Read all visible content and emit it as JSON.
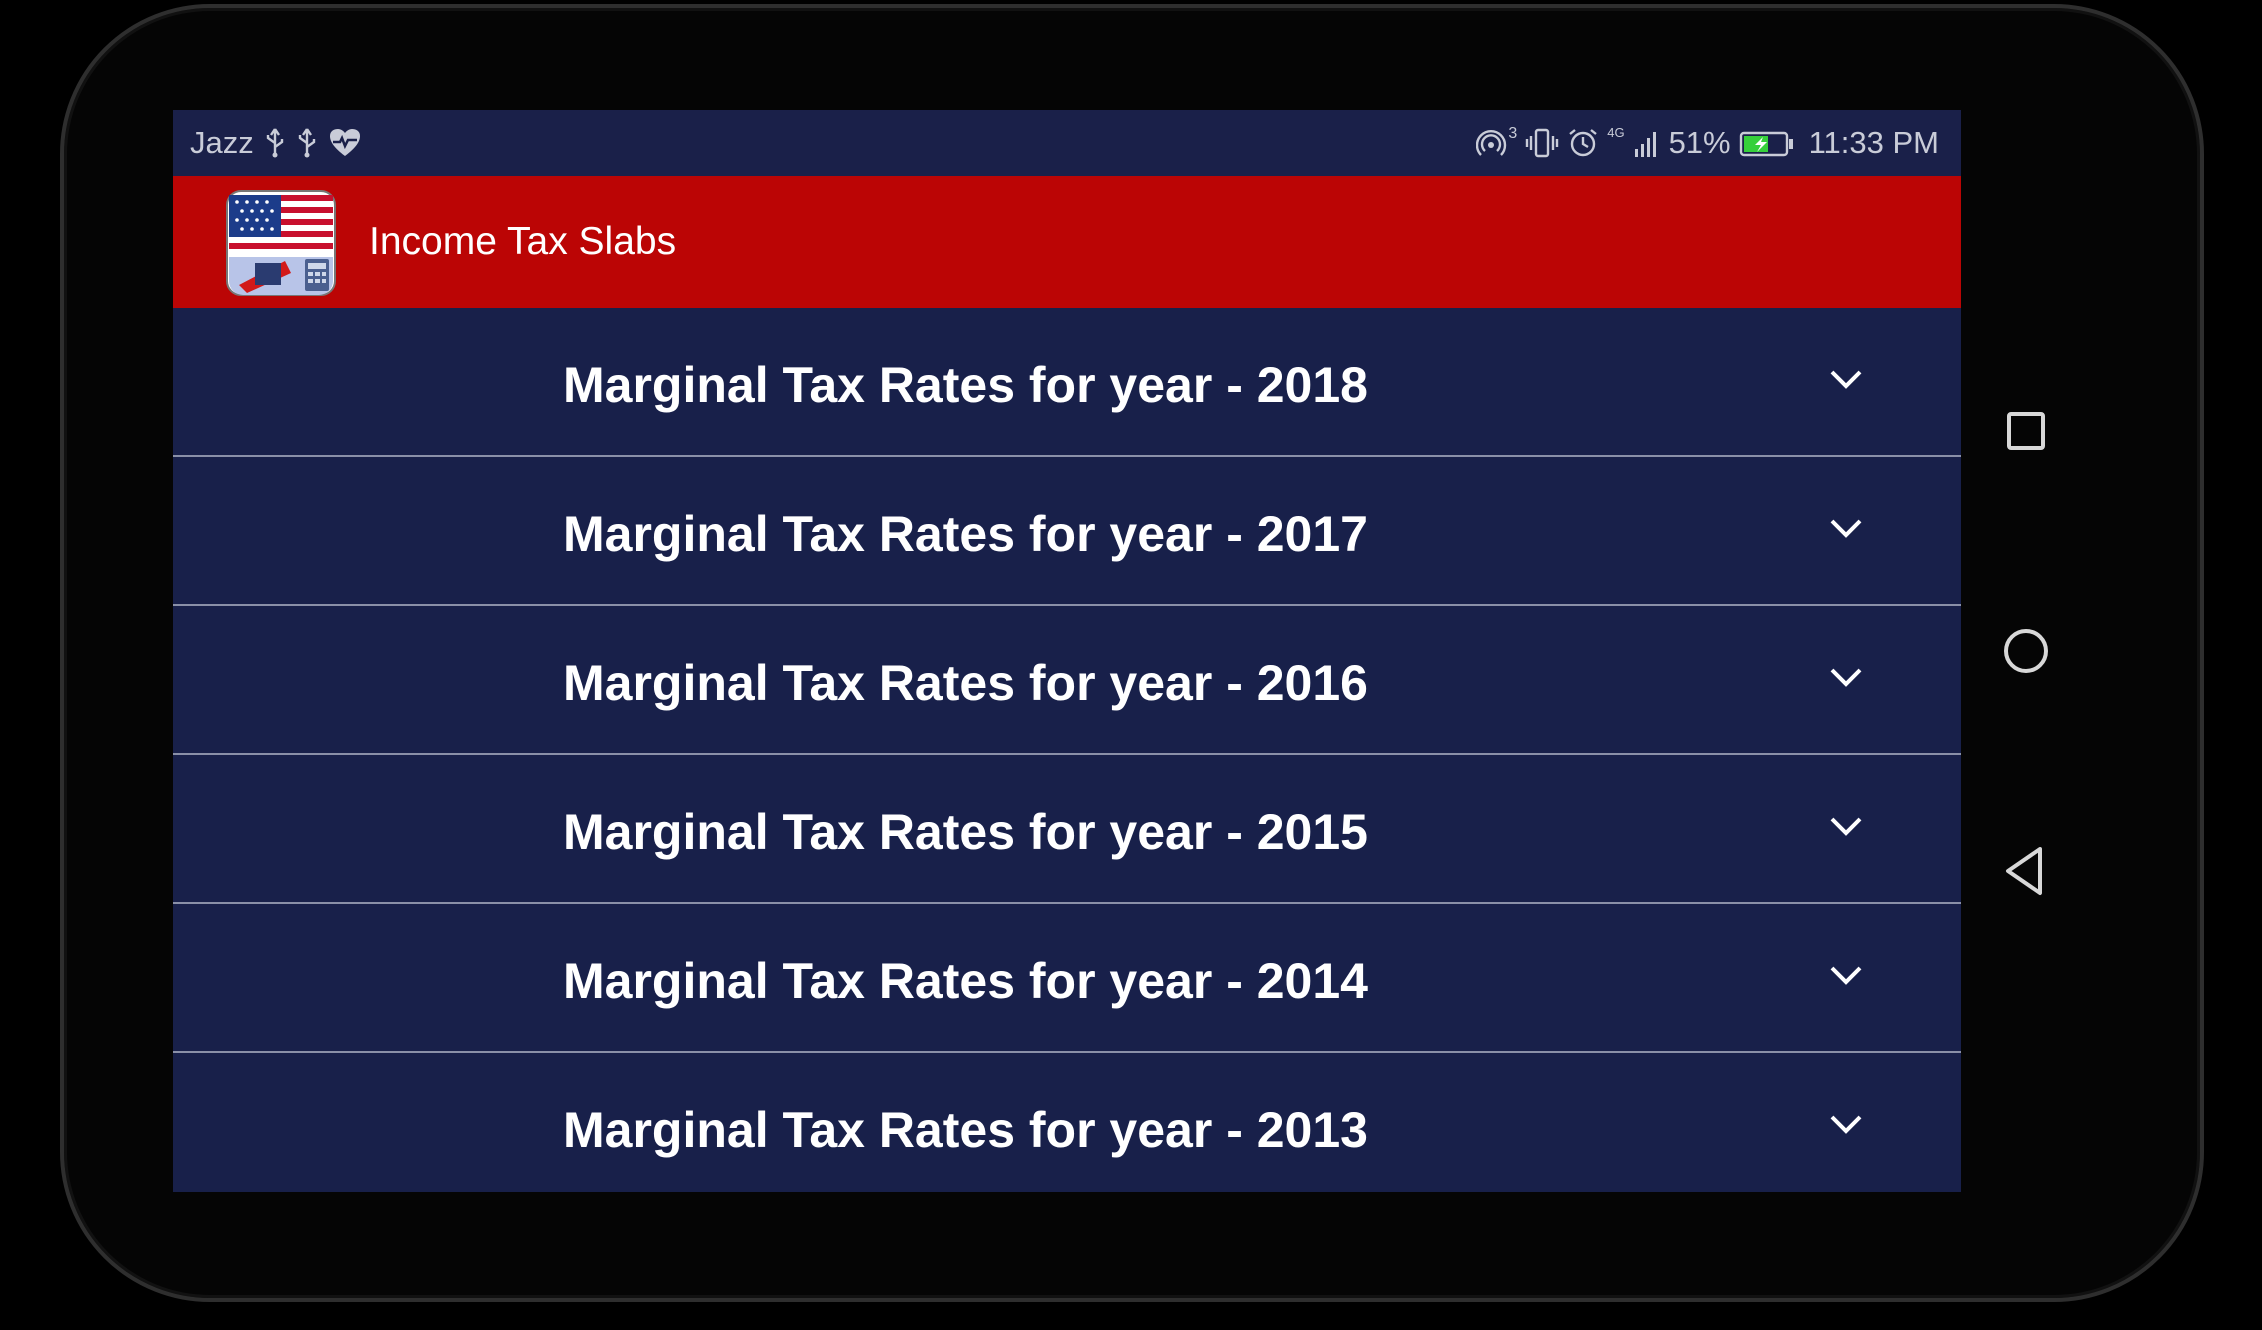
{
  "status_bar": {
    "carrier": "Jazz",
    "network_badge": "3",
    "network_type": "4G",
    "battery": "51%",
    "time": "11:33 PM",
    "icons_left": [
      "usb-icon",
      "usb-icon",
      "health-heart-icon"
    ],
    "icons_right": [
      "hotspot-icon",
      "vibrate-icon",
      "alarm-icon",
      "signal-icon",
      "battery-icon"
    ]
  },
  "app_bar": {
    "title": "Income Tax Slabs",
    "icon": "us-flag-tax-app-icon",
    "color": "#bb0505"
  },
  "list": {
    "items": [
      {
        "label": "Marginal Tax Rates for year - 2018"
      },
      {
        "label": "Marginal Tax Rates for year - 2017"
      },
      {
        "label": "Marginal Tax Rates for year - 2016"
      },
      {
        "label": "Marginal Tax Rates for year - 2015"
      },
      {
        "label": "Marginal Tax Rates for year - 2014"
      },
      {
        "label": "Marginal Tax Rates for year - 2013"
      }
    ],
    "background": "#18204a"
  },
  "nav_bar": {
    "buttons": [
      "recents-button",
      "home-button",
      "back-button"
    ]
  }
}
